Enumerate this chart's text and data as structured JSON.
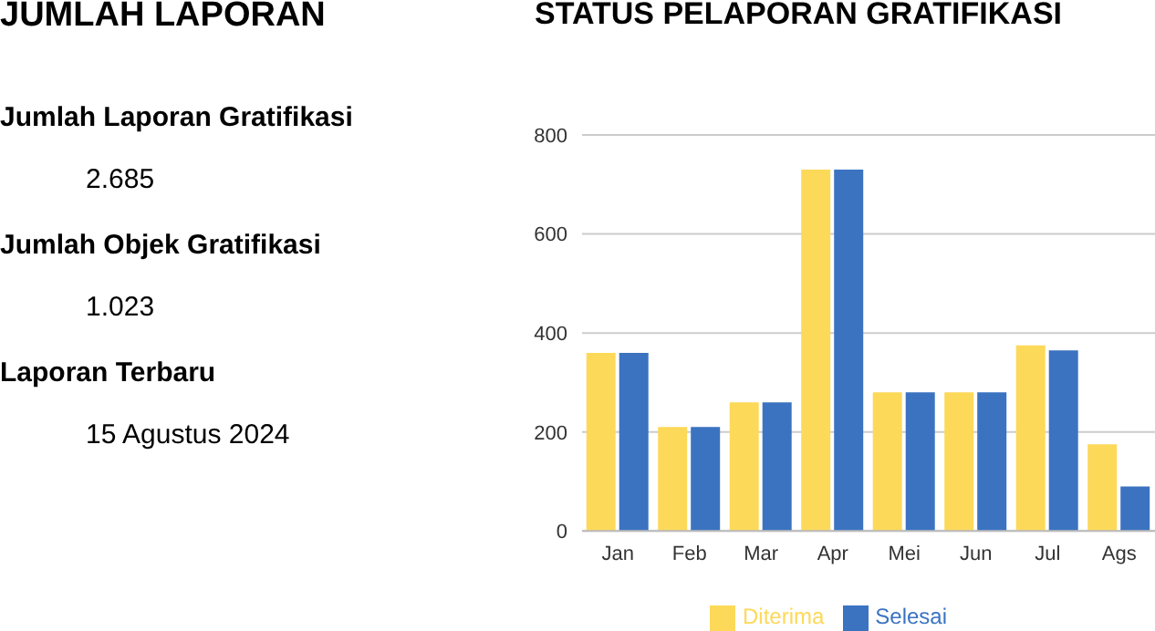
{
  "chart_data": [
    {
      "type": "other",
      "title": "JUMLAH LAPORAN",
      "annotations": [
        "Jumlah Laporan Gratifikasi",
        "2.685",
        "Jumlah Objek Gratifikasi",
        "1.023",
        "Laporan Terbaru",
        "15 Agustus 2024"
      ]
    },
    {
      "type": "bar",
      "title": "STATUS PELAPORAN GRATIFIKASI",
      "categories": [
        "Jan",
        "Feb",
        "Mar",
        "Apr",
        "Mei",
        "Jun",
        "Jul",
        "Ags"
      ],
      "series": [
        {
          "name": "Diterima",
          "color": "#fdd95a",
          "values": [
            360,
            210,
            260,
            730,
            280,
            280,
            375,
            175
          ]
        },
        {
          "name": "Selesai",
          "color": "#3b73c1",
          "values": [
            360,
            210,
            260,
            730,
            280,
            280,
            365,
            90
          ]
        }
      ],
      "ylim": [
        0,
        800
      ],
      "yticks": [
        0,
        200,
        400,
        600,
        800
      ],
      "grid": "y",
      "legend": "bottom"
    }
  ]
}
